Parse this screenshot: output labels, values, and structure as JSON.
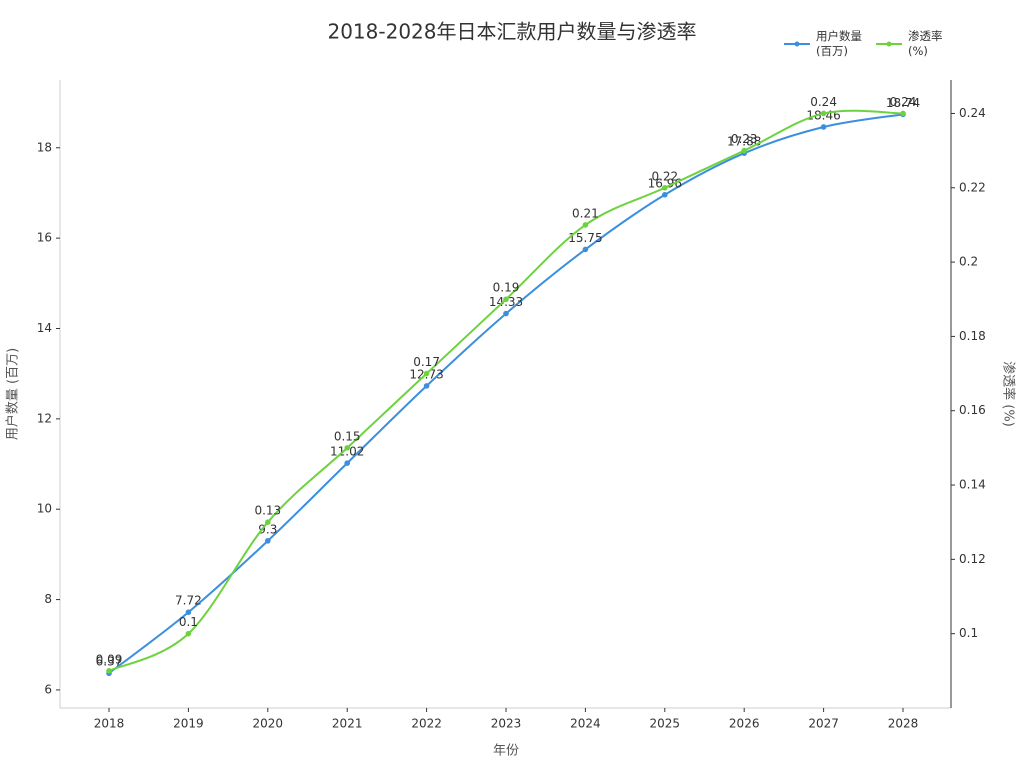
{
  "chart_data": {
    "type": "line",
    "title": "2018-2028年日本汇款用户数量与渗透率",
    "x_label": "年份",
    "y_label": "用户数量 (百万)",
    "y2_label": "渗透率 (%)",
    "categories": [
      "2018",
      "2019",
      "2020",
      "2021",
      "2022",
      "2023",
      "2024",
      "2025",
      "2026",
      "2027",
      "2028"
    ],
    "series": [
      {
        "name": "用户数量\n(百万)",
        "color": "#3b8fde",
        "values": [
          6.37,
          7.72,
          9.3,
          11.02,
          12.73,
          14.33,
          15.75,
          16.96,
          17.88,
          18.46,
          18.74
        ]
      },
      {
        "name": "渗透率\n(%)",
        "color": "#6cd23e",
        "axis": "y2",
        "values": [
          0.09,
          0.1,
          0.13,
          0.15,
          0.17,
          0.19,
          0.21,
          0.22,
          0.23,
          0.24,
          0.24
        ]
      }
    ],
    "ylim": [
      5.6,
      19.5
    ],
    "yticks": [
      6,
      8,
      10,
      12,
      14,
      16,
      18
    ],
    "y2lim": [
      0.08,
      0.249
    ],
    "y2ticks": [
      0.1,
      0.12,
      0.14,
      0.16,
      0.18,
      0.2,
      0.22,
      0.24
    ],
    "smooth": true,
    "legend": "top-right"
  }
}
